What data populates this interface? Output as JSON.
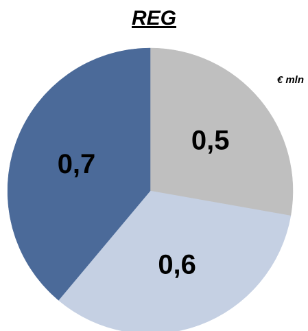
{
  "chart_data": {
    "type": "pie",
    "title": "REG",
    "unit": "€ mln",
    "slices": [
      {
        "label": "0,5",
        "value": 0.5,
        "color": "#bfbfbf"
      },
      {
        "label": "0,6",
        "value": 0.6,
        "color": "#c5d0e3"
      },
      {
        "label": "0,7",
        "value": 0.7,
        "color": "#4b6a99"
      }
    ]
  }
}
